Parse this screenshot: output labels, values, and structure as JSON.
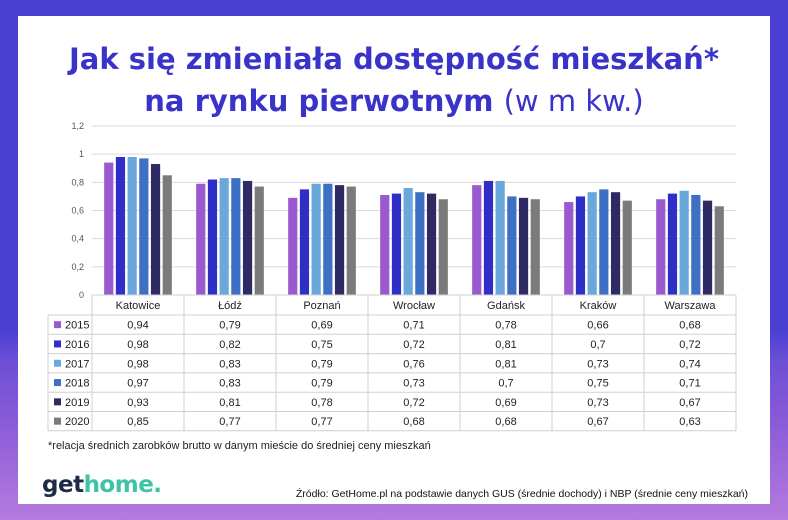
{
  "header": {
    "title_line1": "Jak się zmieniała dostępność mieszkań*",
    "title_line2_bold": "na rynku pierwotnym",
    "title_line2_unit": "(w m kw.)"
  },
  "chart_data": {
    "type": "bar",
    "categories": [
      "Katowice",
      "Łódź",
      "Poznań",
      "Wrocław",
      "Gdańsk",
      "Kraków",
      "Warszawa"
    ],
    "series": [
      {
        "name": "2015",
        "color": "#9b59d0",
        "values": [
          0.94,
          0.79,
          0.69,
          0.71,
          0.78,
          0.66,
          0.68
        ]
      },
      {
        "name": "2016",
        "color": "#2f2fc8",
        "values": [
          0.98,
          0.82,
          0.75,
          0.72,
          0.81,
          0.7,
          0.72
        ]
      },
      {
        "name": "2017",
        "color": "#6aa8dc",
        "values": [
          0.98,
          0.83,
          0.79,
          0.76,
          0.81,
          0.73,
          0.74
        ]
      },
      {
        "name": "2018",
        "color": "#3d6fc4",
        "values": [
          0.97,
          0.83,
          0.79,
          0.73,
          0.7,
          0.75,
          0.71
        ]
      },
      {
        "name": "2019",
        "color": "#2d2a64",
        "values": [
          0.93,
          0.81,
          0.78,
          0.72,
          0.69,
          0.73,
          0.67
        ]
      },
      {
        "name": "2020",
        "color": "#7b7b7b",
        "values": [
          0.85,
          0.77,
          0.77,
          0.68,
          0.68,
          0.67,
          0.63
        ]
      }
    ],
    "value_labels": [
      [
        "0,94",
        "0,79",
        "0,69",
        "0,71",
        "0,78",
        "0,66",
        "0,68"
      ],
      [
        "0,98",
        "0,82",
        "0,75",
        "0,72",
        "0,81",
        "0,7",
        "0,72"
      ],
      [
        "0,98",
        "0,83",
        "0,79",
        "0,76",
        "0,81",
        "0,73",
        "0,74"
      ],
      [
        "0,97",
        "0,83",
        "0,79",
        "0,73",
        "0,7",
        "0,75",
        "0,71"
      ],
      [
        "0,93",
        "0,81",
        "0,78",
        "0,72",
        "0,69",
        "0,73",
        "0,67"
      ],
      [
        "0,85",
        "0,77",
        "0,77",
        "0,68",
        "0,68",
        "0,67",
        "0,63"
      ]
    ],
    "ylim": [
      0,
      1.2
    ],
    "y_ticks": [
      "0",
      "0,2",
      "0,4",
      "0,6",
      "0,8",
      "1",
      "1,2"
    ],
    "grid": true,
    "legend": "data-table"
  },
  "footnote": "*relacja średnich zarobków brutto w danym mieście do średniej ceny mieszkań",
  "logo": {
    "part1": "get",
    "part2": "home."
  },
  "source": "Źródło: GetHome.pl na podstawie danych GUS (średnie dochody) i NBP (średnie ceny mieszkań)"
}
